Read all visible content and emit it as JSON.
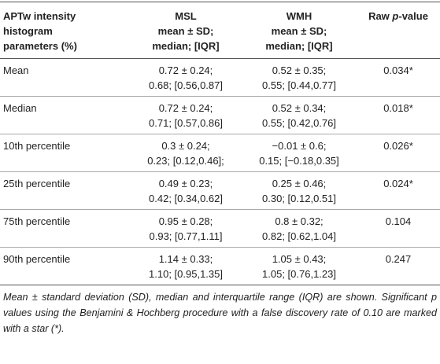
{
  "header": {
    "columns": [
      [
        "APTw intensity",
        "histogram",
        "parameters (%)"
      ],
      [
        "MSL",
        "mean ± SD;",
        "median; [IQR]"
      ],
      [
        "WMH",
        "mean ± SD;",
        "median; [IQR]"
      ]
    ],
    "pvalue": [
      "Raw ",
      "p",
      "-value"
    ]
  },
  "rows": [
    {
      "label": "Mean",
      "msl": [
        "0.72 ± 0.24;",
        "0.68; [0.56,0.87]"
      ],
      "wmh": [
        "0.52 ± 0.35;",
        "0.55; [0.44,0.77]"
      ],
      "p": "0.034*"
    },
    {
      "label": "Median",
      "msl": [
        "0.72 ± 0.24;",
        "0.71; [0.57,0.86]"
      ],
      "wmh": [
        "0.52 ± 0.34;",
        "0.55; [0.42,0.76]"
      ],
      "p": "0.018*"
    },
    {
      "label": "10th percentile",
      "msl": [
        "0.3 ± 0.24;",
        "0.23; [0.12,0.46];"
      ],
      "wmh": [
        "−0.01 ± 0.6;",
        "0.15; [−0.18,0.35]"
      ],
      "p": "0.026*"
    },
    {
      "label": "25th percentile",
      "msl": [
        "0.49 ± 0.23;",
        "0.42; [0.34,0.62]"
      ],
      "wmh": [
        "0.25 ± 0.46;",
        "0.30; [0.12,0.51]"
      ],
      "p": "0.024*"
    },
    {
      "label": "75th percentile",
      "msl": [
        "0.95 ± 0.28;",
        "0.93; [0.77,1.11]"
      ],
      "wmh": [
        "0.8 ± 0.32;",
        "0.82; [0.62,1.04]"
      ],
      "p": "0.104"
    },
    {
      "label": "90th percentile",
      "msl": [
        "1.14 ± 0.33;",
        "1.10; [0.95,1.35]"
      ],
      "wmh": [
        "1.05 ± 0.43;",
        "1.05; [0.76,1.23]"
      ],
      "p": "0.247"
    }
  ],
  "footnote": "Mean ± standard deviation (SD), median and interquartile range (IQR) are shown. Significant p values using the Benjamini & Hochberg procedure with a false discovery rate of 0.10 are marked with a star (*)."
}
